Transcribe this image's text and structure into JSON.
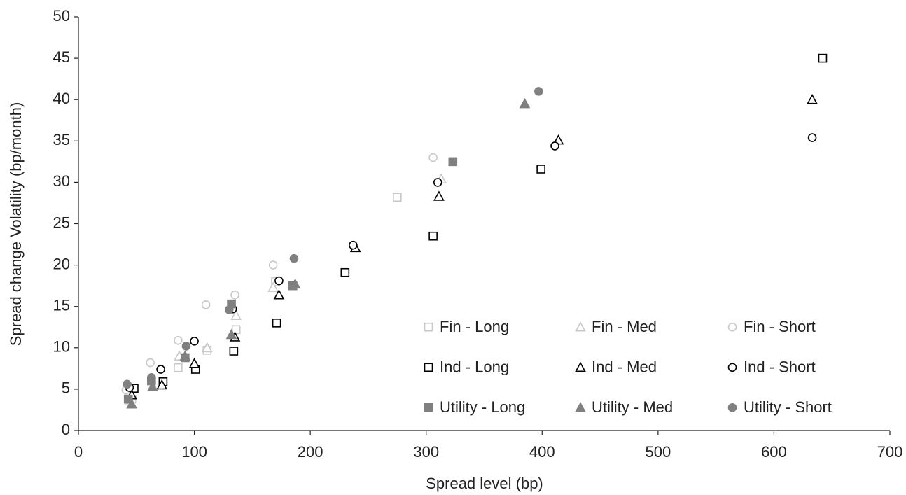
{
  "chart_data": {
    "type": "scatter",
    "x_label": "Spread level (bp)",
    "y_label": "Spread change Volatility (bp/month)",
    "xlim": [
      0,
      700
    ],
    "xticks": [
      0,
      100,
      200,
      300,
      400,
      500,
      600,
      700
    ],
    "ylim": [
      0,
      50
    ],
    "yticks": [
      0,
      5,
      10,
      15,
      20,
      25,
      30,
      35,
      40,
      45,
      50
    ],
    "grid": false,
    "legend": "lower right",
    "series": [
      {
        "name": "Fin - Long",
        "color": "#c8c8c8",
        "marker": "square",
        "filled": false,
        "x": [
          46,
          86,
          111,
          136,
          170,
          275
        ],
        "values": [
          3.8,
          7.6,
          9.7,
          12.2,
          18.0,
          28.2
        ]
      },
      {
        "name": "Fin - Med",
        "color": "#c8c8c8",
        "marker": "triangle",
        "filled": false,
        "x": [
          44,
          87,
          111,
          136,
          168,
          313
        ],
        "values": [
          3.7,
          9.0,
          10.0,
          13.9,
          17.3,
          30.4
        ]
      },
      {
        "name": "Fin - Short",
        "color": "#c8c8c8",
        "marker": "circle",
        "filled": false,
        "x": [
          41,
          62,
          86,
          110,
          135,
          168,
          306
        ],
        "values": [
          4.9,
          8.2,
          10.9,
          15.2,
          16.4,
          20.0,
          33.0
        ]
      },
      {
        "name": "Ind - Long",
        "color": "#000000",
        "marker": "square",
        "filled": false,
        "x": [
          48,
          73,
          101,
          134,
          171,
          230,
          306,
          399,
          642
        ],
        "values": [
          5.1,
          5.9,
          7.4,
          9.6,
          13.0,
          19.1,
          23.5,
          31.6,
          45.0
        ]
      },
      {
        "name": "Ind - Med",
        "color": "#000000",
        "marker": "triangle",
        "filled": false,
        "x": [
          46,
          72,
          100,
          135,
          173,
          239,
          311,
          414,
          633
        ],
        "values": [
          4.3,
          5.5,
          8.1,
          11.3,
          16.4,
          22.1,
          28.3,
          35.1,
          40.0
        ]
      },
      {
        "name": "Ind - Short",
        "color": "#000000",
        "marker": "circle",
        "filled": false,
        "x": [
          44,
          71,
          100,
          133,
          173,
          237,
          310,
          411,
          633
        ],
        "values": [
          5.2,
          7.4,
          10.8,
          14.7,
          18.1,
          22.4,
          30.0,
          34.4,
          35.4
        ]
      },
      {
        "name": "Utility - Long",
        "color": "#808080",
        "marker": "square",
        "filled": true,
        "x": [
          43,
          63,
          92,
          132,
          185,
          323
        ],
        "values": [
          3.8,
          6.0,
          8.8,
          15.3,
          17.5,
          32.5
        ]
      },
      {
        "name": "Utility - Med",
        "color": "#808080",
        "marker": "triangle",
        "filled": true,
        "x": [
          46,
          64,
          92,
          132,
          187,
          385
        ],
        "values": [
          3.2,
          5.3,
          9.0,
          11.6,
          17.7,
          39.5
        ]
      },
      {
        "name": "Utility - Short",
        "color": "#808080",
        "marker": "circle",
        "filled": true,
        "x": [
          42,
          63,
          93,
          130,
          186,
          397
        ],
        "values": [
          5.6,
          6.4,
          10.2,
          14.6,
          20.8,
          41.0
        ]
      }
    ]
  }
}
